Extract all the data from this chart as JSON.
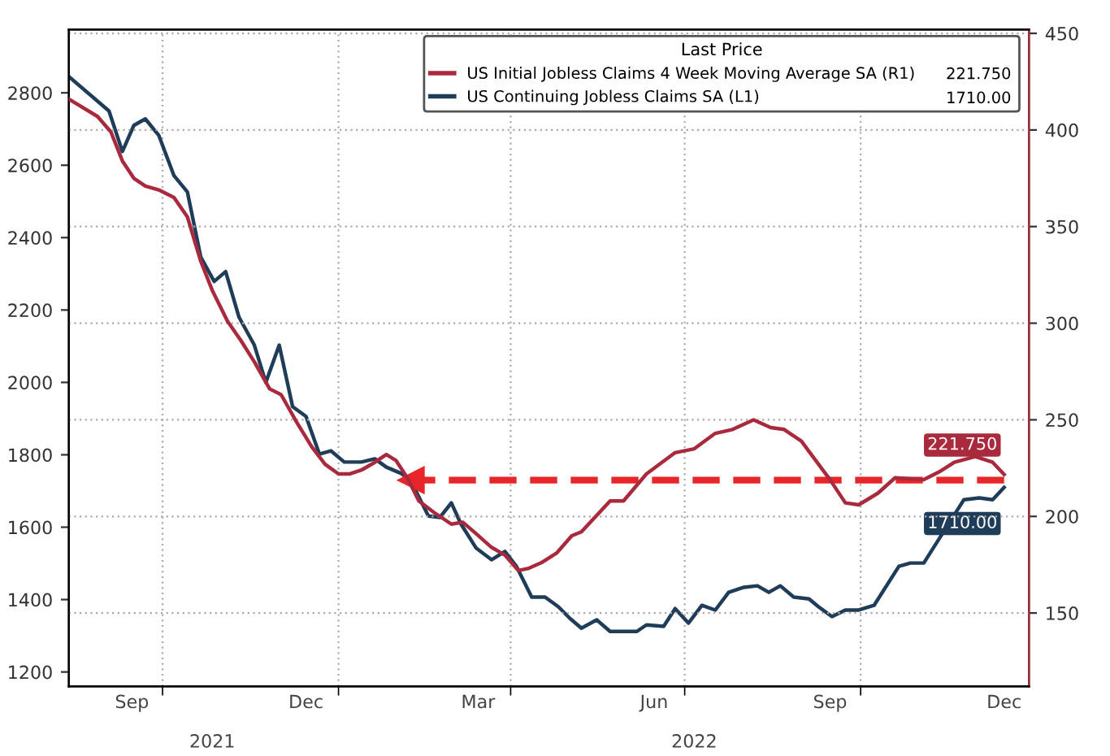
{
  "chart_data": {
    "type": "line",
    "legend_title": "Last Price",
    "xlim": [
      "2021-08-13",
      "2022-12-28"
    ],
    "xticks": [
      {
        "value": "2021-09-15",
        "label": "Sep"
      },
      {
        "value": "2021-10-01",
        "label": null
      },
      {
        "value": "2021-12-15",
        "label": "Dec"
      },
      {
        "value": "2022-01-01",
        "label": null
      },
      {
        "value": "2022-03-15",
        "label": "Mar"
      },
      {
        "value": "2022-04-01",
        "label": null
      },
      {
        "value": "2022-06-15",
        "label": "Jun"
      },
      {
        "value": "2022-07-01",
        "label": null
      },
      {
        "value": "2022-09-15",
        "label": "Sep"
      },
      {
        "value": "2022-10-01",
        "label": null
      },
      {
        "value": "2022-12-15",
        "label": "Dec"
      }
    ],
    "x2lim": [
      "2021-08-13",
      "2022-12-28"
    ],
    "x2ticks": [
      {
        "value": "2021-10-27",
        "label": "2021"
      },
      {
        "value": "2022-07-06",
        "label": "2022"
      }
    ],
    "ylim": [
      1160,
      2975
    ],
    "yticks": [
      1200,
      1400,
      1600,
      1800,
      2000,
      2200,
      2400,
      2600,
      2800
    ],
    "y2lim": [
      112,
      452
    ],
    "y2ticks": [
      150,
      200,
      250,
      300,
      350,
      400,
      450
    ],
    "grid": true,
    "legend": "top right",
    "series": [
      {
        "name": "US Initial Jobless Claims 4 Week Moving Average SA (R1)",
        "color": "#a82a3c",
        "axis": "y2",
        "x": [
          "2021-08-13",
          "2021-08-28",
          "2021-09-04",
          "2021-09-10",
          "2021-09-16",
          "2021-09-22",
          "2021-09-29",
          "2021-10-07",
          "2021-10-14",
          "2021-10-21",
          "2021-10-27",
          "2021-11-04",
          "2021-11-11",
          "2021-11-18",
          "2021-11-26",
          "2021-12-02",
          "2021-12-10",
          "2021-12-18",
          "2021-12-25",
          "2022-01-01",
          "2022-01-07",
          "2022-01-13",
          "2022-01-20",
          "2022-01-26",
          "2022-01-31",
          "2022-02-06",
          "2022-02-12",
          "2022-02-20",
          "2022-03-01",
          "2022-03-07",
          "2022-03-14",
          "2022-03-22",
          "2022-03-29",
          "2022-04-05",
          "2022-04-10",
          "2022-04-17",
          "2022-04-25",
          "2022-05-03",
          "2022-05-08",
          "2022-05-23",
          "2022-05-30",
          "2022-06-11",
          "2022-06-26",
          "2022-07-06",
          "2022-07-17",
          "2022-07-26",
          "2022-08-06",
          "2022-08-15",
          "2022-08-22",
          "2022-08-31",
          "2022-09-15",
          "2022-09-23",
          "2022-09-30",
          "2022-10-10",
          "2022-10-19",
          "2022-11-03",
          "2022-11-11",
          "2022-11-19",
          "2022-11-30",
          "2022-12-09",
          "2022-12-15"
        ],
        "values": [
          416,
          407,
          399,
          384,
          375,
          371,
          369,
          365,
          355,
          332,
          317,
          301,
          291,
          280,
          266,
          263,
          249,
          236,
          227,
          222,
          222,
          224,
          228,
          232,
          229,
          220,
          208,
          202,
          196,
          197,
          191,
          184,
          180,
          172,
          173,
          176,
          181,
          190,
          192,
          208,
          208,
          222,
          233,
          235,
          243,
          245,
          250,
          246,
          245,
          239,
          219,
          207,
          206,
          212,
          220,
          219,
          223,
          228,
          231,
          228,
          221.75
        ],
        "value_labels": [
          null,
          null,
          null,
          null,
          null,
          null,
          null,
          null,
          null,
          null,
          null,
          null,
          null,
          null,
          null,
          null,
          null,
          null,
          null,
          null,
          null,
          null,
          null,
          null,
          null,
          null,
          null,
          null,
          null,
          null,
          null,
          null,
          null,
          null,
          null,
          null,
          null,
          null,
          null,
          null,
          null,
          null,
          null,
          null,
          null,
          null,
          null,
          null,
          null,
          null,
          null,
          null,
          null,
          null,
          null,
          null,
          null,
          null,
          null,
          null,
          "221.750"
        ]
      },
      {
        "name": "US Continuing Jobless Claims SA (L1)",
        "color": "#1f3d58",
        "axis": "y",
        "x": [
          "2021-08-13",
          "2021-09-03",
          "2021-09-10",
          "2021-09-16",
          "2021-09-22",
          "2021-09-29",
          "2021-10-07",
          "2021-10-14",
          "2021-10-21",
          "2021-10-28",
          "2021-11-03",
          "2021-11-10",
          "2021-11-18",
          "2021-11-24",
          "2021-12-01",
          "2021-12-06",
          "2021-12-08",
          "2021-12-15",
          "2021-12-22",
          "2021-12-28",
          "2022-01-04",
          "2022-01-13",
          "2022-01-20",
          "2022-01-26",
          "2022-02-03",
          "2022-02-08",
          "2022-02-17",
          "2022-02-23",
          "2022-03-01",
          "2022-03-06",
          "2022-03-14",
          "2022-03-22",
          "2022-03-29",
          "2022-04-04",
          "2022-04-12",
          "2022-04-19",
          "2022-04-26",
          "2022-05-02",
          "2022-05-08",
          "2022-05-16",
          "2022-05-23",
          "2022-06-06",
          "2022-06-11",
          "2022-06-20",
          "2022-06-26",
          "2022-07-03",
          "2022-07-10",
          "2022-07-17",
          "2022-07-24",
          "2022-08-01",
          "2022-08-08",
          "2022-08-14",
          "2022-08-20",
          "2022-08-27",
          "2022-09-04",
          "2022-09-09",
          "2022-09-16",
          "2022-09-23",
          "2022-09-30",
          "2022-10-08",
          "2022-10-21",
          "2022-10-27",
          "2022-11-03",
          "2022-11-24",
          "2022-12-02",
          "2022-12-09",
          "2022-12-15"
        ],
        "values": [
          2845,
          2750,
          2638,
          2710,
          2728,
          2683,
          2571,
          2526,
          2346,
          2279,
          2306,
          2180,
          2103,
          2000,
          2103,
          1982,
          1933,
          1906,
          1802,
          1811,
          1780,
          1780,
          1789,
          1766,
          1748,
          1726,
          1631,
          1627,
          1667,
          1609,
          1542,
          1510,
          1533,
          1492,
          1407,
          1407,
          1380,
          1348,
          1321,
          1344,
          1312,
          1312,
          1330,
          1326,
          1375,
          1335,
          1384,
          1371,
          1420,
          1434,
          1438,
          1420,
          1438,
          1407,
          1402,
          1380,
          1353,
          1371,
          1371,
          1384,
          1492,
          1501,
          1501,
          1676,
          1681,
          1676,
          1710
        ],
        "value_labels": [
          null,
          null,
          null,
          null,
          null,
          null,
          null,
          null,
          null,
          null,
          null,
          null,
          null,
          null,
          null,
          null,
          null,
          null,
          null,
          null,
          null,
          null,
          null,
          null,
          null,
          null,
          null,
          null,
          null,
          null,
          null,
          null,
          null,
          null,
          null,
          null,
          null,
          null,
          null,
          null,
          null,
          null,
          null,
          null,
          null,
          null,
          null,
          null,
          null,
          null,
          null,
          null,
          null,
          null,
          null,
          null,
          null,
          null,
          null,
          null,
          null,
          null,
          null,
          null,
          null,
          null,
          "1710.00"
        ]
      },
      {
        "type": "line",
        "color": "#e8262a",
        "axis": "y",
        "line_style": "dashed",
        "marker": "triangle",
        "x": [
          "2022-12-15",
          "2022-02-08"
        ],
        "values": [
          1730,
          1730
        ]
      }
    ]
  }
}
